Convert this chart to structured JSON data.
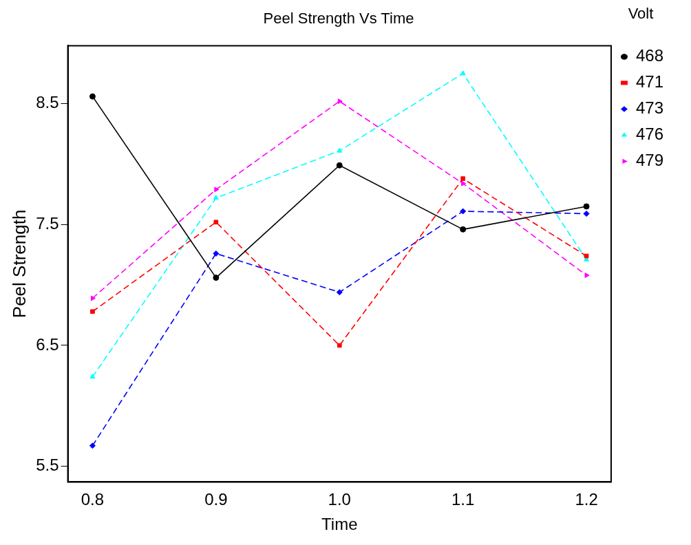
{
  "chart_data": {
    "type": "line",
    "title": "Peel Strength Vs Time",
    "xlabel": "Time",
    "ylabel": "Peel Strength",
    "legend_title": "Volt",
    "legend": "right",
    "x": [
      0.8,
      0.9,
      1.0,
      1.1,
      1.2
    ],
    "xlim": [
      0.78,
      1.22
    ],
    "xticks": [
      0.8,
      0.9,
      {
        "value": 1.0,
        "label": "1.0"
      },
      1.1,
      1.2
    ],
    "ylim": [
      5.37,
      8.98
    ],
    "yticks": [
      5.5,
      6.5,
      7.5,
      8.5
    ],
    "grid": false,
    "series": [
      {
        "name": "468",
        "color": "#000000",
        "marker": "circle",
        "line_style": "solid",
        "values": [
          8.56,
          7.06,
          7.99,
          7.46,
          7.65
        ]
      },
      {
        "name": "471",
        "color": "#ff0000",
        "marker": "square",
        "line_style": "dashed",
        "values": [
          6.78,
          7.52,
          6.5,
          7.88,
          7.24
        ]
      },
      {
        "name": "473",
        "color": "#0000ff",
        "marker": "diamond",
        "line_style": "dashed",
        "values": [
          5.67,
          7.26,
          6.94,
          7.61,
          7.59
        ]
      },
      {
        "name": "476",
        "color": "#00ffff",
        "marker": "triangle",
        "line_style": "dashed",
        "values": [
          6.24,
          7.72,
          8.11,
          8.75,
          7.21
        ]
      },
      {
        "name": "479",
        "color": "#ff00ff",
        "marker": "triangle-right",
        "line_style": "dashed",
        "values": [
          6.89,
          7.79,
          8.52,
          7.84,
          7.08
        ]
      }
    ]
  }
}
